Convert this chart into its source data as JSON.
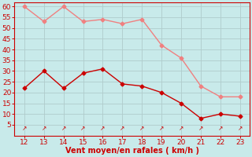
{
  "x": [
    12,
    13,
    14,
    15,
    16,
    17,
    18,
    19,
    20,
    21,
    22,
    23
  ],
  "rafales": [
    60,
    53,
    60,
    53,
    54,
    52,
    54,
    42,
    36,
    23,
    18,
    18
  ],
  "moyen": [
    22,
    30,
    22,
    29,
    31,
    24,
    23,
    20,
    15,
    8,
    10,
    9
  ],
  "color_rafales": "#f08080",
  "color_moyen": "#cc0000",
  "background_color": "#c8eaea",
  "grid_color": "#b0cccc",
  "xlabel": "Vent moyen/en rafales ( km/h )",
  "xlabel_color": "#cc0000",
  "tick_color": "#cc0000",
  "ylim": [
    0,
    62
  ],
  "yticks": [
    5,
    10,
    15,
    20,
    25,
    30,
    35,
    40,
    45,
    50,
    55,
    60
  ],
  "xlim": [
    11.5,
    23.5
  ],
  "xticks": [
    12,
    13,
    14,
    15,
    16,
    17,
    18,
    19,
    20,
    21,
    22,
    23
  ],
  "marker": "D",
  "markersize": 2.5,
  "linewidth": 1.0
}
